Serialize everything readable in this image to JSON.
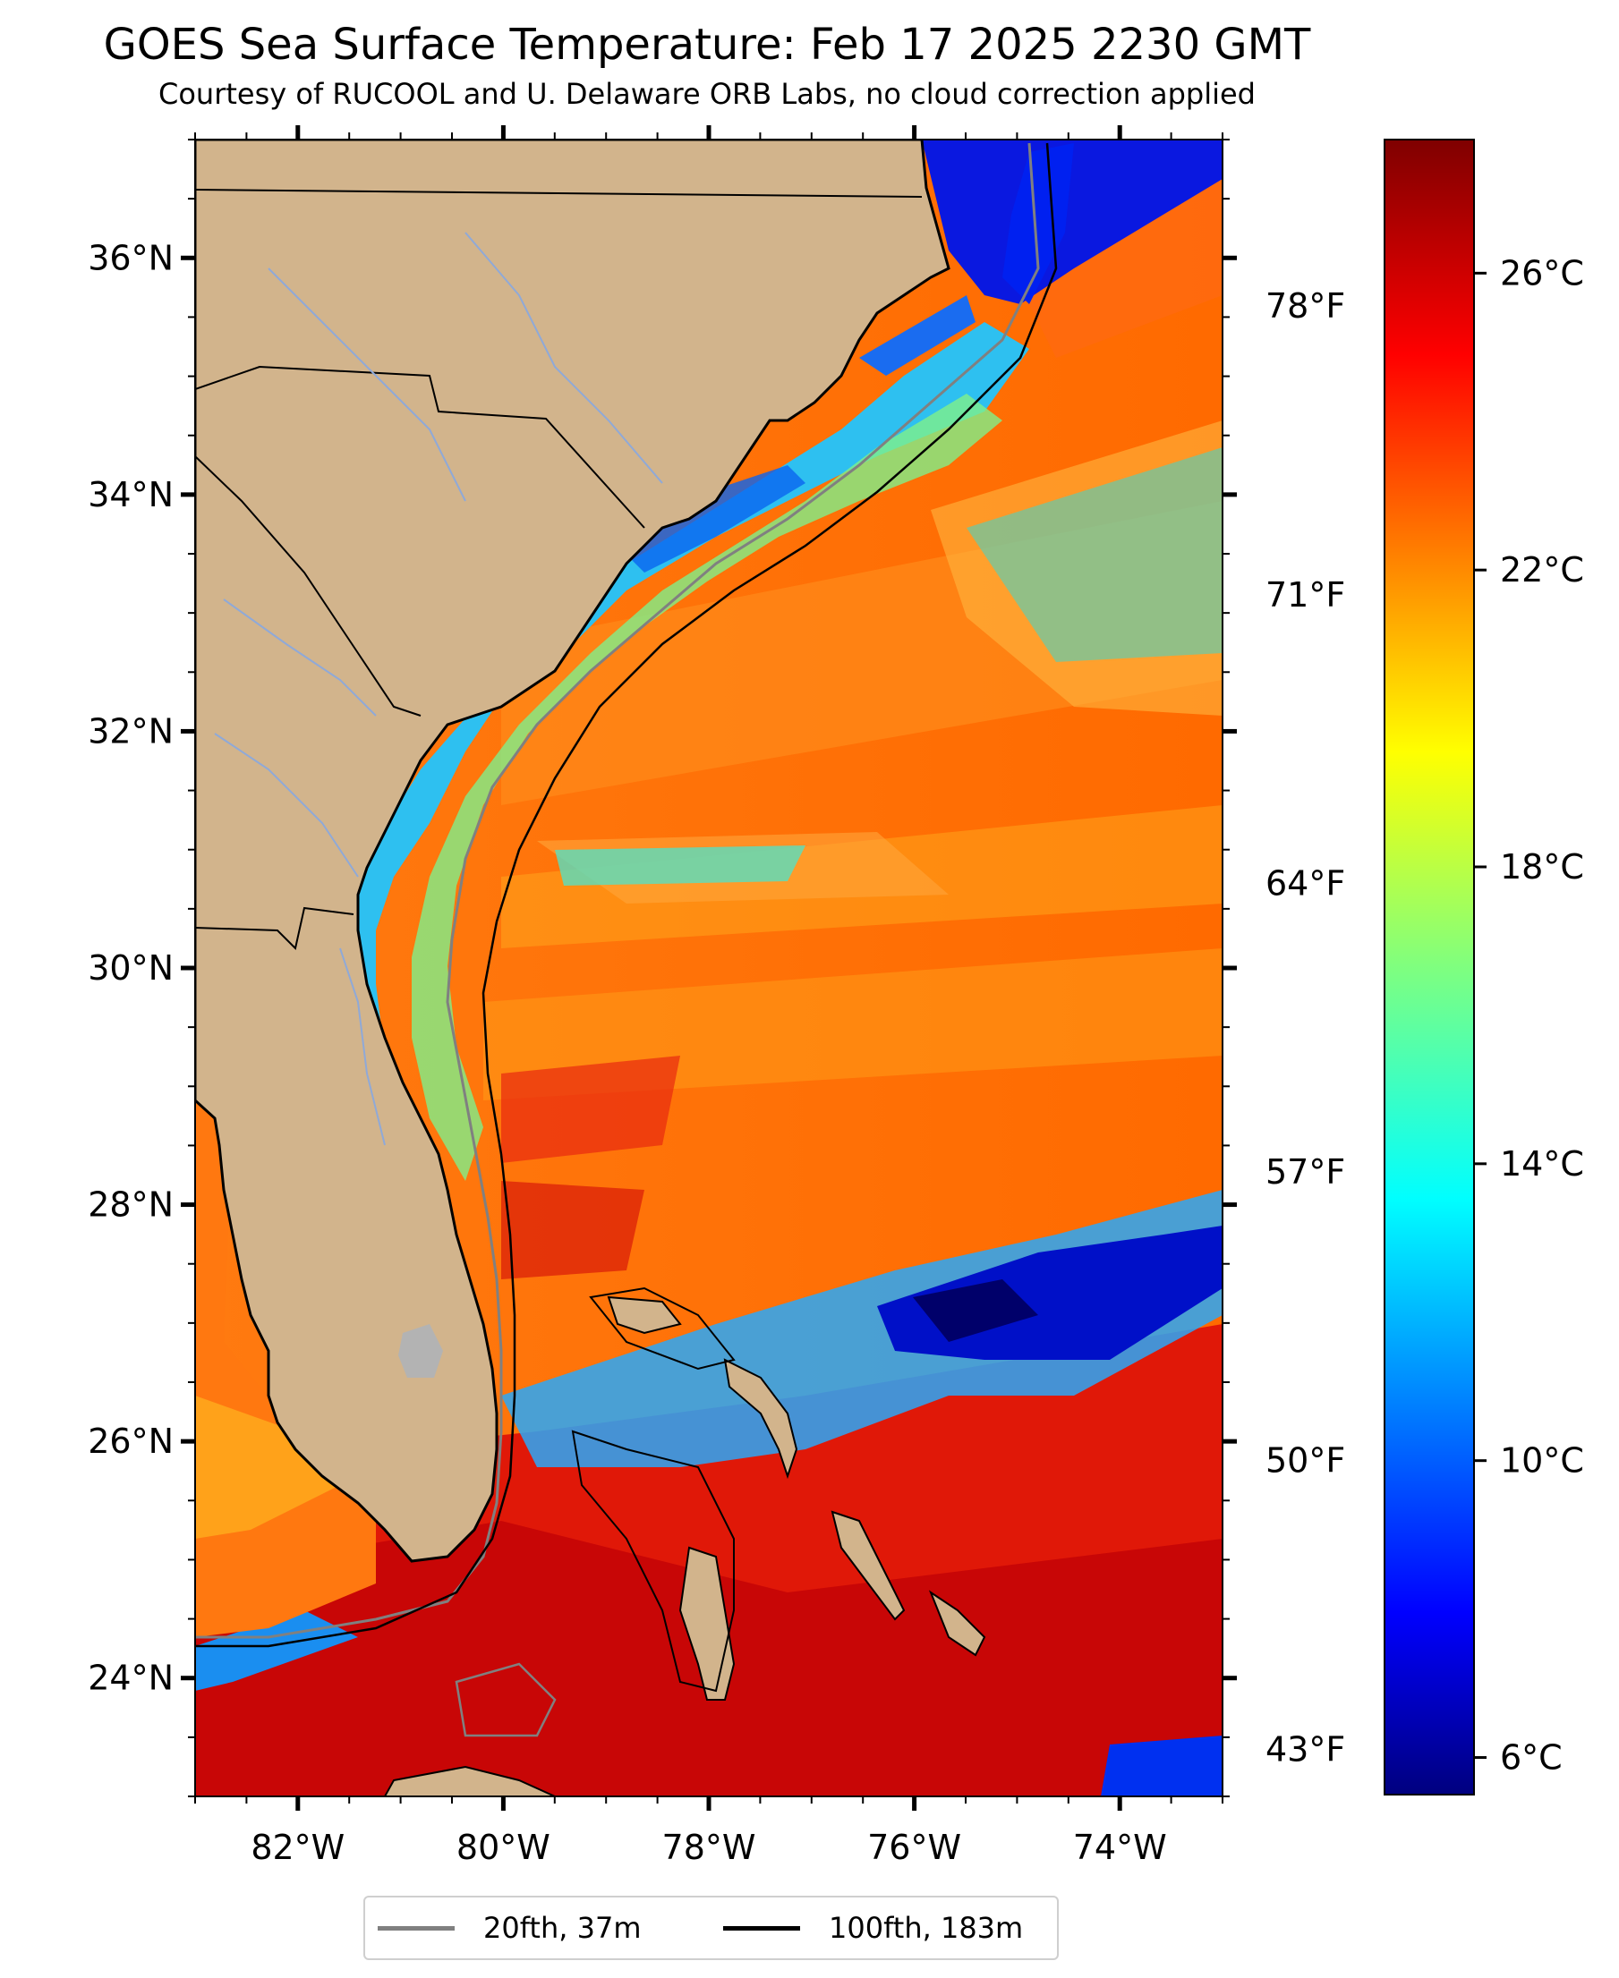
{
  "title": "GOES Sea Surface Temperature: Feb 17 2025 2230 GMT",
  "subtitle": "Courtesy of RUCOOL and U. Delaware ORB Labs, no cloud correction applied",
  "map": {
    "lon_range": [
      -83.0,
      -73.0
    ],
    "lat_range": [
      23.0,
      37.0
    ],
    "lon_ticks": [
      {
        "value": -82,
        "label": "82°W"
      },
      {
        "value": -80,
        "label": "80°W"
      },
      {
        "value": -78,
        "label": "78°W"
      },
      {
        "value": -76,
        "label": "76°W"
      },
      {
        "value": -74,
        "label": "74°W"
      }
    ],
    "lat_ticks": [
      {
        "value": 36,
        "label": "36°N"
      },
      {
        "value": 34,
        "label": "34°N"
      },
      {
        "value": 32,
        "label": "32°N"
      },
      {
        "value": 30,
        "label": "30°N"
      },
      {
        "value": 28,
        "label": "28°N"
      },
      {
        "value": 26,
        "label": "26°N"
      },
      {
        "value": 24,
        "label": "24°N"
      }
    ],
    "fahrenheit_ticks": [
      {
        "value": 78,
        "label": "78°F"
      },
      {
        "value": 71,
        "label": "71°F"
      },
      {
        "value": 64,
        "label": "64°F"
      },
      {
        "value": 57,
        "label": "57°F"
      },
      {
        "value": 50,
        "label": "50°F"
      },
      {
        "value": 43,
        "label": "43°F"
      }
    ],
    "land_color": "#d2b48c",
    "river_color": "#8fa9d8",
    "lake_color": "#b3b3b3"
  },
  "colorbar": {
    "range_c": [
      5.5,
      27.8
    ],
    "colormap": "jet",
    "ticks": [
      {
        "value": 26,
        "label": "26°C"
      },
      {
        "value": 22,
        "label": "22°C"
      },
      {
        "value": 18,
        "label": "18°C"
      },
      {
        "value": 14,
        "label": "14°C"
      },
      {
        "value": 10,
        "label": "10°C"
      },
      {
        "value": 6,
        "label": "6°C"
      }
    ]
  },
  "legend": {
    "items": [
      {
        "label": "20fth, 37m",
        "color": "#808080"
      },
      {
        "label": "100fth, 183m",
        "color": "#000000"
      }
    ]
  }
}
